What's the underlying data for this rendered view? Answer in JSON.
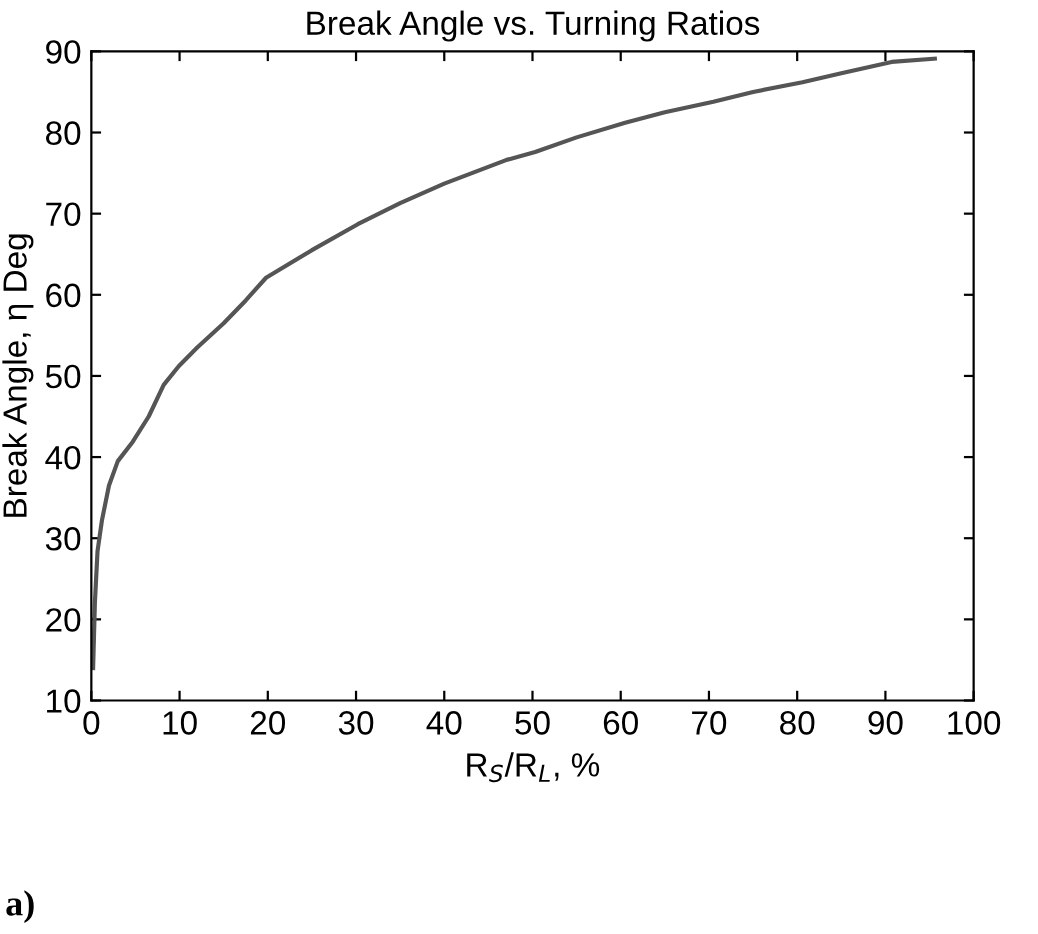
{
  "chart_data": {
    "type": "line",
    "title": "Break Angle vs. Turning Ratios",
    "xlabel": "R$_{S}$/R$_{L}$, %",
    "ylabel": "Break Angle, η Deg",
    "annotations": [
      "a)"
    ],
    "series": [
      {
        "color": "#555555",
        "x": [
          0.2,
          0.4,
          0.7,
          1.2,
          2,
          3,
          4.7,
          6.5,
          8.2,
          9.9,
          12,
          15,
          17.5,
          19.8,
          25,
          30.2,
          35,
          40,
          47,
          50.3,
          55,
          60.5,
          65,
          70.5,
          75,
          80.6,
          85,
          90.7,
          95.6
        ],
        "values": [
          14,
          22,
          28.4,
          32.2,
          36.5,
          39.5,
          41.9,
          45,
          48.9,
          51.2,
          53.5,
          56.5,
          59.3,
          62.1,
          65.5,
          68.7,
          71.3,
          73.7,
          76.6,
          77.6,
          79.4,
          81.2,
          82.5,
          83.8,
          85,
          86.2,
          87.3,
          88.7,
          89.1
        ]
      }
    ],
    "xlim": [
      0,
      100
    ],
    "ylim": [
      10,
      90
    ],
    "xticks": [
      0,
      10,
      20,
      30,
      40,
      50,
      60,
      70,
      80,
      90,
      100
    ],
    "yticks": [
      10,
      20,
      30,
      40,
      50,
      60,
      70,
      80,
      90
    ],
    "grid": false,
    "legend": false,
    "marker": "none",
    "line_style": "solid"
  }
}
